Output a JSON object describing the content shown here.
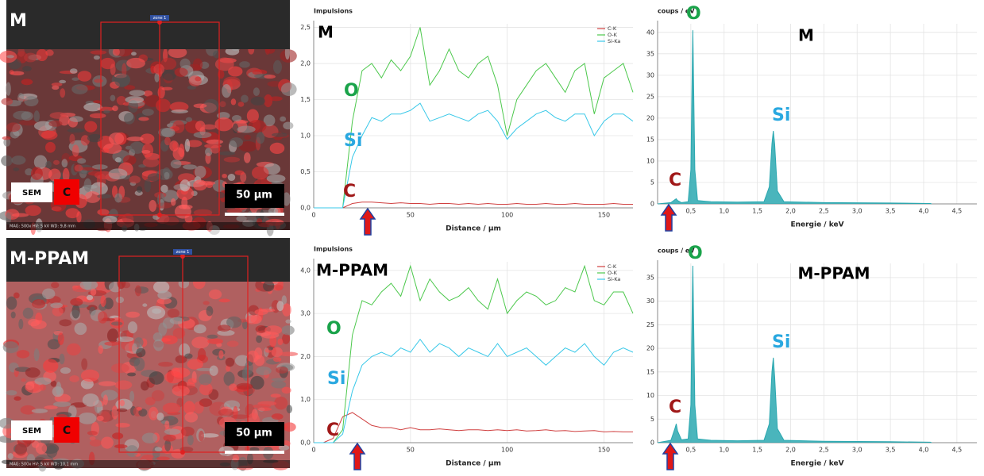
{
  "images": [
    {
      "label": "M",
      "zone": "zone 1",
      "mode": "SEM",
      "element": "C",
      "scale": "50 µm",
      "info": "MAG: 500x   HV: 5 kV   WD: 9,8 mm"
    },
    {
      "label": "M-PPAM",
      "zone": "zone 1",
      "mode": "SEM",
      "element": "C",
      "scale": "50 µm",
      "info": "MAG: 500x   HV: 5 kV   WD: 10,1 mm"
    }
  ],
  "chart_data": [
    {
      "type": "line",
      "title": "M",
      "y_label": "Impulsions",
      "x_label": "Distance / µm",
      "legend": "top-right",
      "grid": true,
      "annotations": [
        {
          "text": "O",
          "color": "#1aa34a"
        },
        {
          "text": "Si",
          "color": "#29a8e0"
        },
        {
          "text": "C",
          "color": "#a01818"
        }
      ],
      "x": [
        0,
        5,
        10,
        15,
        20,
        25,
        30,
        35,
        40,
        45,
        50,
        55,
        60,
        65,
        70,
        75,
        80,
        85,
        90,
        95,
        100,
        105,
        110,
        115,
        120,
        125,
        130,
        135,
        140,
        145,
        150,
        155,
        160,
        165
      ],
      "series": [
        {
          "name": "C-K",
          "color": "#d04040",
          "values": [
            0,
            0,
            0,
            0,
            0.06,
            0.08,
            0.08,
            0.07,
            0.06,
            0.07,
            0.06,
            0.06,
            0.05,
            0.06,
            0.06,
            0.05,
            0.06,
            0.05,
            0.06,
            0.05,
            0.05,
            0.06,
            0.05,
            0.05,
            0.06,
            0.05,
            0.05,
            0.06,
            0.05,
            0.05,
            0.05,
            0.06,
            0.05,
            0.05
          ]
        },
        {
          "name": "O-K",
          "color": "#4cc84c",
          "values": [
            0,
            0,
            0,
            0,
            1.2,
            1.9,
            2.0,
            1.8,
            2.05,
            1.9,
            2.1,
            2.5,
            1.7,
            1.9,
            2.2,
            1.9,
            1.8,
            2.0,
            2.1,
            1.7,
            1.0,
            1.5,
            1.7,
            1.9,
            2.0,
            1.8,
            1.6,
            1.9,
            2.0,
            1.3,
            1.8,
            1.9,
            2.0,
            1.6
          ]
        },
        {
          "name": "Si-Ka",
          "color": "#38c8e8",
          "values": [
            0,
            0,
            0,
            0,
            0.7,
            1.0,
            1.25,
            1.2,
            1.3,
            1.3,
            1.35,
            1.45,
            1.2,
            1.25,
            1.3,
            1.25,
            1.2,
            1.3,
            1.35,
            1.2,
            0.95,
            1.1,
            1.2,
            1.3,
            1.35,
            1.25,
            1.2,
            1.3,
            1.3,
            1.0,
            1.2,
            1.3,
            1.3,
            1.2
          ]
        }
      ],
      "xlim": [
        0,
        165
      ],
      "xticks": [
        0,
        50,
        100,
        150
      ],
      "ylim": [
        0,
        2.55
      ],
      "yticks": [
        {
          "value": 0,
          "label": "0,0"
        },
        {
          "value": 0.5,
          "label": "0,5"
        },
        {
          "value": 1,
          "label": "1,0"
        },
        {
          "value": 1.5,
          "label": "1,5"
        },
        {
          "value": 2,
          "label": "2,0"
        },
        {
          "value": 2.5,
          "label": "2,5"
        }
      ]
    },
    {
      "type": "area",
      "title": "M",
      "y_label": "coups / eV",
      "x_label": "Energie / keV",
      "color": "#2aa8b0",
      "grid": true,
      "annotations": [
        {
          "text": "O",
          "color": "#1aa34a"
        },
        {
          "text": "Si",
          "color": "#29a8e0"
        },
        {
          "text": "C",
          "color": "#a01818"
        }
      ],
      "x": [
        0,
        0.2,
        0.26,
        0.28,
        0.3,
        0.36,
        0.46,
        0.5,
        0.52,
        0.53,
        0.54,
        0.56,
        0.6,
        0.8,
        1.2,
        1.6,
        1.68,
        1.72,
        1.74,
        1.76,
        1.8,
        1.9,
        2.5,
        3.5,
        4.1,
        4.12
      ],
      "values": [
        0,
        0.3,
        1,
        1.2,
        0.8,
        0.3,
        0.5,
        8,
        30,
        40.5,
        30,
        8,
        0.8,
        0.5,
        0.4,
        0.5,
        4,
        14,
        17,
        14,
        3,
        0.5,
        0.3,
        0.2,
        0.1,
        0
      ],
      "xlim": [
        0,
        4.8
      ],
      "xticks": [
        {
          "value": 0.5,
          "label": "0,5"
        },
        {
          "value": 1,
          "label": "1,0"
        },
        {
          "value": 1.5,
          "label": "1,5"
        },
        {
          "value": 2,
          "label": "2,0"
        },
        {
          "value": 2.5,
          "label": "2,5"
        },
        {
          "value": 3,
          "label": "3,0"
        },
        {
          "value": 3.5,
          "label": "3,5"
        },
        {
          "value": 4,
          "label": "4,0"
        },
        {
          "value": 4.5,
          "label": "4,5"
        }
      ],
      "ylim": [
        0,
        42
      ],
      "yticks": [
        0,
        5,
        10,
        15,
        20,
        25,
        30,
        35,
        40
      ]
    },
    {
      "type": "line",
      "title": "M-PPAM",
      "y_label": "Impulsions",
      "x_label": "Distance / µm",
      "legend": "top-right",
      "grid": true,
      "annotations": [
        {
          "text": "O",
          "color": "#1aa34a"
        },
        {
          "text": "Si",
          "color": "#29a8e0"
        },
        {
          "text": "C",
          "color": "#a01818"
        }
      ],
      "x": [
        0,
        5,
        10,
        15,
        20,
        25,
        30,
        35,
        40,
        45,
        50,
        55,
        60,
        65,
        70,
        75,
        80,
        85,
        90,
        95,
        100,
        105,
        110,
        115,
        120,
        125,
        130,
        135,
        140,
        145,
        150,
        155,
        160,
        165
      ],
      "series": [
        {
          "name": "C-K",
          "color": "#d04040",
          "values": [
            0,
            0,
            0.1,
            0.6,
            0.7,
            0.55,
            0.4,
            0.35,
            0.35,
            0.3,
            0.35,
            0.3,
            0.3,
            0.32,
            0.3,
            0.28,
            0.3,
            0.3,
            0.28,
            0.3,
            0.28,
            0.3,
            0.27,
            0.28,
            0.3,
            0.27,
            0.28,
            0.26,
            0.27,
            0.28,
            0.25,
            0.26,
            0.25,
            0.25
          ]
        },
        {
          "name": "O-K",
          "color": "#4cc84c",
          "values": [
            0,
            0,
            0,
            0.3,
            2.5,
            3.3,
            3.2,
            3.5,
            3.7,
            3.4,
            4.1,
            3.3,
            3.8,
            3.5,
            3.3,
            3.4,
            3.6,
            3.3,
            3.1,
            3.8,
            3.0,
            3.3,
            3.5,
            3.4,
            3.2,
            3.3,
            3.6,
            3.5,
            4.1,
            3.3,
            3.2,
            3.5,
            3.5,
            3.0
          ]
        },
        {
          "name": "Si-Ka",
          "color": "#38c8e8",
          "values": [
            0,
            0,
            0,
            0.2,
            1.2,
            1.8,
            2.0,
            2.1,
            2.0,
            2.2,
            2.1,
            2.4,
            2.1,
            2.3,
            2.2,
            2.0,
            2.2,
            2.1,
            2.0,
            2.3,
            2.0,
            2.1,
            2.2,
            2.0,
            1.8,
            2.0,
            2.2,
            2.1,
            2.3,
            2.0,
            1.8,
            2.1,
            2.2,
            2.1
          ]
        }
      ],
      "xlim": [
        0,
        165
      ],
      "xticks": [
        0,
        50,
        100,
        150
      ],
      "ylim": [
        0,
        4.2
      ],
      "yticks": [
        {
          "value": 0,
          "label": "0,0"
        },
        {
          "value": 1,
          "label": "1,0"
        },
        {
          "value": 2,
          "label": "2,0"
        },
        {
          "value": 3,
          "label": "3,0"
        },
        {
          "value": 4,
          "label": "4,0"
        }
      ]
    },
    {
      "type": "area",
      "title": "M-PPAM",
      "y_label": "coups / eV",
      "x_label": "Energie / keV",
      "color": "#2aa8b0",
      "grid": true,
      "annotations": [
        {
          "text": "O",
          "color": "#1aa34a"
        },
        {
          "text": "Si",
          "color": "#29a8e0"
        },
        {
          "text": "C",
          "color": "#a01818"
        }
      ],
      "x": [
        0,
        0.2,
        0.26,
        0.28,
        0.3,
        0.36,
        0.46,
        0.5,
        0.52,
        0.53,
        0.54,
        0.56,
        0.6,
        0.8,
        1.2,
        1.6,
        1.68,
        1.72,
        1.74,
        1.76,
        1.8,
        1.9,
        2.5,
        3.5,
        4.1,
        4.12
      ],
      "values": [
        0,
        0.5,
        3,
        4,
        2.5,
        0.6,
        0.8,
        8,
        28,
        37.5,
        28,
        8,
        0.8,
        0.5,
        0.4,
        0.5,
        4,
        15,
        18,
        14,
        3,
        0.5,
        0.3,
        0.2,
        0.1,
        0
      ],
      "xlim": [
        0,
        4.8
      ],
      "xticks": [
        {
          "value": 0.5,
          "label": "0,5"
        },
        {
          "value": 1,
          "label": "1,0"
        },
        {
          "value": 1.5,
          "label": "1,5"
        },
        {
          "value": 2,
          "label": "2,0"
        },
        {
          "value": 2.5,
          "label": "2,5"
        },
        {
          "value": 3,
          "label": "3,0"
        },
        {
          "value": 3.5,
          "label": "3,5"
        },
        {
          "value": 4,
          "label": "4,0"
        },
        {
          "value": 4.5,
          "label": "4,5"
        }
      ],
      "ylim": [
        0,
        38
      ],
      "yticks": [
        0,
        5,
        10,
        15,
        20,
        25,
        30,
        35
      ]
    }
  ]
}
